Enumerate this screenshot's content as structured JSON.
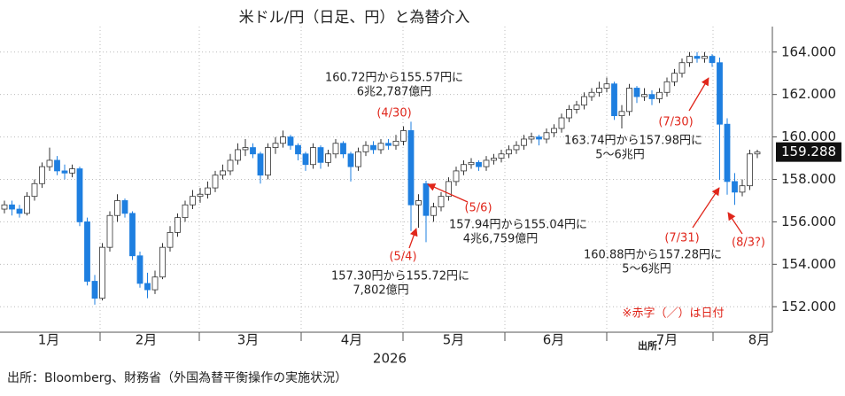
{
  "chart_data": {
    "type": "candlestick",
    "title": "米ドル/円（日足、円）と為替介入",
    "xlabel": "2026",
    "source": "出所：Bloomberg、財務省（外国為替平衡操作の実施状況）",
    "stray_label": "出所：",
    "months": [
      "1月",
      "2月",
      "3月",
      "4月",
      "5月",
      "6月",
      "7月",
      "8月"
    ],
    "ylim": [
      150.8,
      165.2
    ],
    "yticks": [
      {
        "value": 152,
        "label": "152.000"
      },
      {
        "value": 154,
        "label": "154.000"
      },
      {
        "value": 156,
        "label": "156.000"
      },
      {
        "value": 158,
        "label": "158.000"
      },
      {
        "value": 160,
        "label": "160.000"
      },
      {
        "value": 162,
        "label": "162.000"
      },
      {
        "value": 164,
        "label": "164.000"
      }
    ],
    "grid": true,
    "up_color": "#ffffff",
    "down_color": "#1e7fe0",
    "last_price": 159.288,
    "candles": [
      [
        156.6,
        157.0,
        156.4,
        156.8
      ],
      [
        156.8,
        157.0,
        156.3,
        156.6
      ],
      [
        156.6,
        156.8,
        156.2,
        156.4
      ],
      [
        156.4,
        157.4,
        156.3,
        157.2
      ],
      [
        157.2,
        158.0,
        157.0,
        157.8
      ],
      [
        157.8,
        158.8,
        157.6,
        158.6
      ],
      [
        158.6,
        159.5,
        158.4,
        158.9
      ],
      [
        158.9,
        159.1,
        158.2,
        158.4
      ],
      [
        158.4,
        158.7,
        158.0,
        158.3
      ],
      [
        158.3,
        158.7,
        158.1,
        158.5
      ],
      [
        158.5,
        158.6,
        155.8,
        156.0
      ],
      [
        156.0,
        156.2,
        153.0,
        153.2
      ],
      [
        153.2,
        153.5,
        152.1,
        152.4
      ],
      [
        152.4,
        155.0,
        152.3,
        154.8
      ],
      [
        154.8,
        156.5,
        154.6,
        156.3
      ],
      [
        156.3,
        157.3,
        156.0,
        157.0
      ],
      [
        157.0,
        157.1,
        156.2,
        156.4
      ],
      [
        156.4,
        156.5,
        154.2,
        154.4
      ],
      [
        154.4,
        154.6,
        152.9,
        153.1
      ],
      [
        153.1,
        153.6,
        152.4,
        152.8
      ],
      [
        152.8,
        153.7,
        152.6,
        153.4
      ],
      [
        153.4,
        155.0,
        153.3,
        154.8
      ],
      [
        154.8,
        155.8,
        154.6,
        155.5
      ],
      [
        155.5,
        156.4,
        155.3,
        156.2
      ],
      [
        156.2,
        157.0,
        156.0,
        156.8
      ],
      [
        156.8,
        157.5,
        156.6,
        157.2
      ],
      [
        157.2,
        157.6,
        156.9,
        157.3
      ],
      [
        157.3,
        157.9,
        157.1,
        157.6
      ],
      [
        157.6,
        158.4,
        157.4,
        158.2
      ],
      [
        158.2,
        158.7,
        158.0,
        158.4
      ],
      [
        158.4,
        159.2,
        158.2,
        158.9
      ],
      [
        158.9,
        159.7,
        158.7,
        159.4
      ],
      [
        159.4,
        159.9,
        159.1,
        159.5
      ],
      [
        159.5,
        159.7,
        159.0,
        159.2
      ],
      [
        159.2,
        159.3,
        157.8,
        158.2
      ],
      [
        158.2,
        159.7,
        158.0,
        159.5
      ],
      [
        159.5,
        160.0,
        159.2,
        159.7
      ],
      [
        159.7,
        160.3,
        159.5,
        160.0
      ],
      [
        160.0,
        160.1,
        159.4,
        159.6
      ],
      [
        159.6,
        159.7,
        158.9,
        159.2
      ],
      [
        159.2,
        159.3,
        158.4,
        158.7
      ],
      [
        158.7,
        159.7,
        158.5,
        159.5
      ],
      [
        159.5,
        159.6,
        158.5,
        158.8
      ],
      [
        158.8,
        159.4,
        158.6,
        159.2
      ],
      [
        159.2,
        159.9,
        159.0,
        159.7
      ],
      [
        159.7,
        159.8,
        159.0,
        159.2
      ],
      [
        159.2,
        159.3,
        157.9,
        158.6
      ],
      [
        158.6,
        159.5,
        158.4,
        159.3
      ],
      [
        159.3,
        159.8,
        159.1,
        159.6
      ],
      [
        159.6,
        159.8,
        159.2,
        159.4
      ],
      [
        159.4,
        159.9,
        159.2,
        159.7
      ],
      [
        159.7,
        159.9,
        159.4,
        159.6
      ],
      [
        159.6,
        160.1,
        159.4,
        159.8
      ],
      [
        159.8,
        160.5,
        159.6,
        160.3
      ],
      [
        160.3,
        160.72,
        155.57,
        156.8
      ],
      [
        156.8,
        157.3,
        155.72,
        157.0
      ],
      [
        157.8,
        157.94,
        155.04,
        156.3
      ],
      [
        156.3,
        156.9,
        156.0,
        156.7
      ],
      [
        156.7,
        157.4,
        156.5,
        157.2
      ],
      [
        157.2,
        158.1,
        157.0,
        157.9
      ],
      [
        157.9,
        158.6,
        157.7,
        158.4
      ],
      [
        158.4,
        158.9,
        158.2,
        158.7
      ],
      [
        158.7,
        159.0,
        158.5,
        158.8
      ],
      [
        158.8,
        158.9,
        158.4,
        158.6
      ],
      [
        158.6,
        159.1,
        158.4,
        158.9
      ],
      [
        158.9,
        159.2,
        158.7,
        159.0
      ],
      [
        159.0,
        159.4,
        158.8,
        159.2
      ],
      [
        159.2,
        159.6,
        159.0,
        159.4
      ],
      [
        159.4,
        159.8,
        159.2,
        159.6
      ],
      [
        159.6,
        160.1,
        159.4,
        159.9
      ],
      [
        159.9,
        160.2,
        159.7,
        160.0
      ],
      [
        160.0,
        160.1,
        159.6,
        159.9
      ],
      [
        159.9,
        160.4,
        159.7,
        160.2
      ],
      [
        160.2,
        160.6,
        160.0,
        160.4
      ],
      [
        160.4,
        161.1,
        160.2,
        160.9
      ],
      [
        160.9,
        161.5,
        160.7,
        161.3
      ],
      [
        161.3,
        161.7,
        161.1,
        161.5
      ],
      [
        161.5,
        162.1,
        161.3,
        161.9
      ],
      [
        161.9,
        162.3,
        161.7,
        162.1
      ],
      [
        162.1,
        162.6,
        161.9,
        162.3
      ],
      [
        162.3,
        162.8,
        162.1,
        162.5
      ],
      [
        162.5,
        162.6,
        160.8,
        161.0
      ],
      [
        161.0,
        161.5,
        160.4,
        161.2
      ],
      [
        161.2,
        162.5,
        161.0,
        162.3
      ],
      [
        162.3,
        162.4,
        161.6,
        161.9
      ],
      [
        161.9,
        162.3,
        161.7,
        162.0
      ],
      [
        162.0,
        162.2,
        161.5,
        161.8
      ],
      [
        161.8,
        162.3,
        161.6,
        162.1
      ],
      [
        162.1,
        162.8,
        161.9,
        162.6
      ],
      [
        162.6,
        163.2,
        162.4,
        163.0
      ],
      [
        163.0,
        163.7,
        162.8,
        163.5
      ],
      [
        163.5,
        164.0,
        163.3,
        163.8
      ],
      [
        163.8,
        164.0,
        163.5,
        163.7
      ],
      [
        163.7,
        164.0,
        163.5,
        163.8
      ],
      [
        163.8,
        163.9,
        163.3,
        163.5
      ],
      [
        163.5,
        163.74,
        157.98,
        160.6
      ],
      [
        160.6,
        160.88,
        157.28,
        157.9
      ],
      [
        157.9,
        158.3,
        156.8,
        157.4
      ],
      [
        157.4,
        158.0,
        157.2,
        157.7
      ],
      [
        157.7,
        159.4,
        157.5,
        159.2
      ],
      [
        159.2,
        159.4,
        159.0,
        159.288
      ]
    ],
    "annotations": [
      "160.72円から155.57円に",
      "6兆2,787億円",
      "163.74円から157.98円に",
      "5～6兆円",
      "157.94円から155.04円に",
      "4兆6,759億円",
      "157.30円から155.72円に",
      "7,802億円",
      "160.88円から157.28円に",
      "5～6兆円"
    ],
    "date_labels": [
      "(4/30)",
      "(7/30)",
      "(5/6)",
      "(5/4)",
      "(7/31)",
      "(8/3?)",
      "※赤字（／）は日付"
    ]
  }
}
